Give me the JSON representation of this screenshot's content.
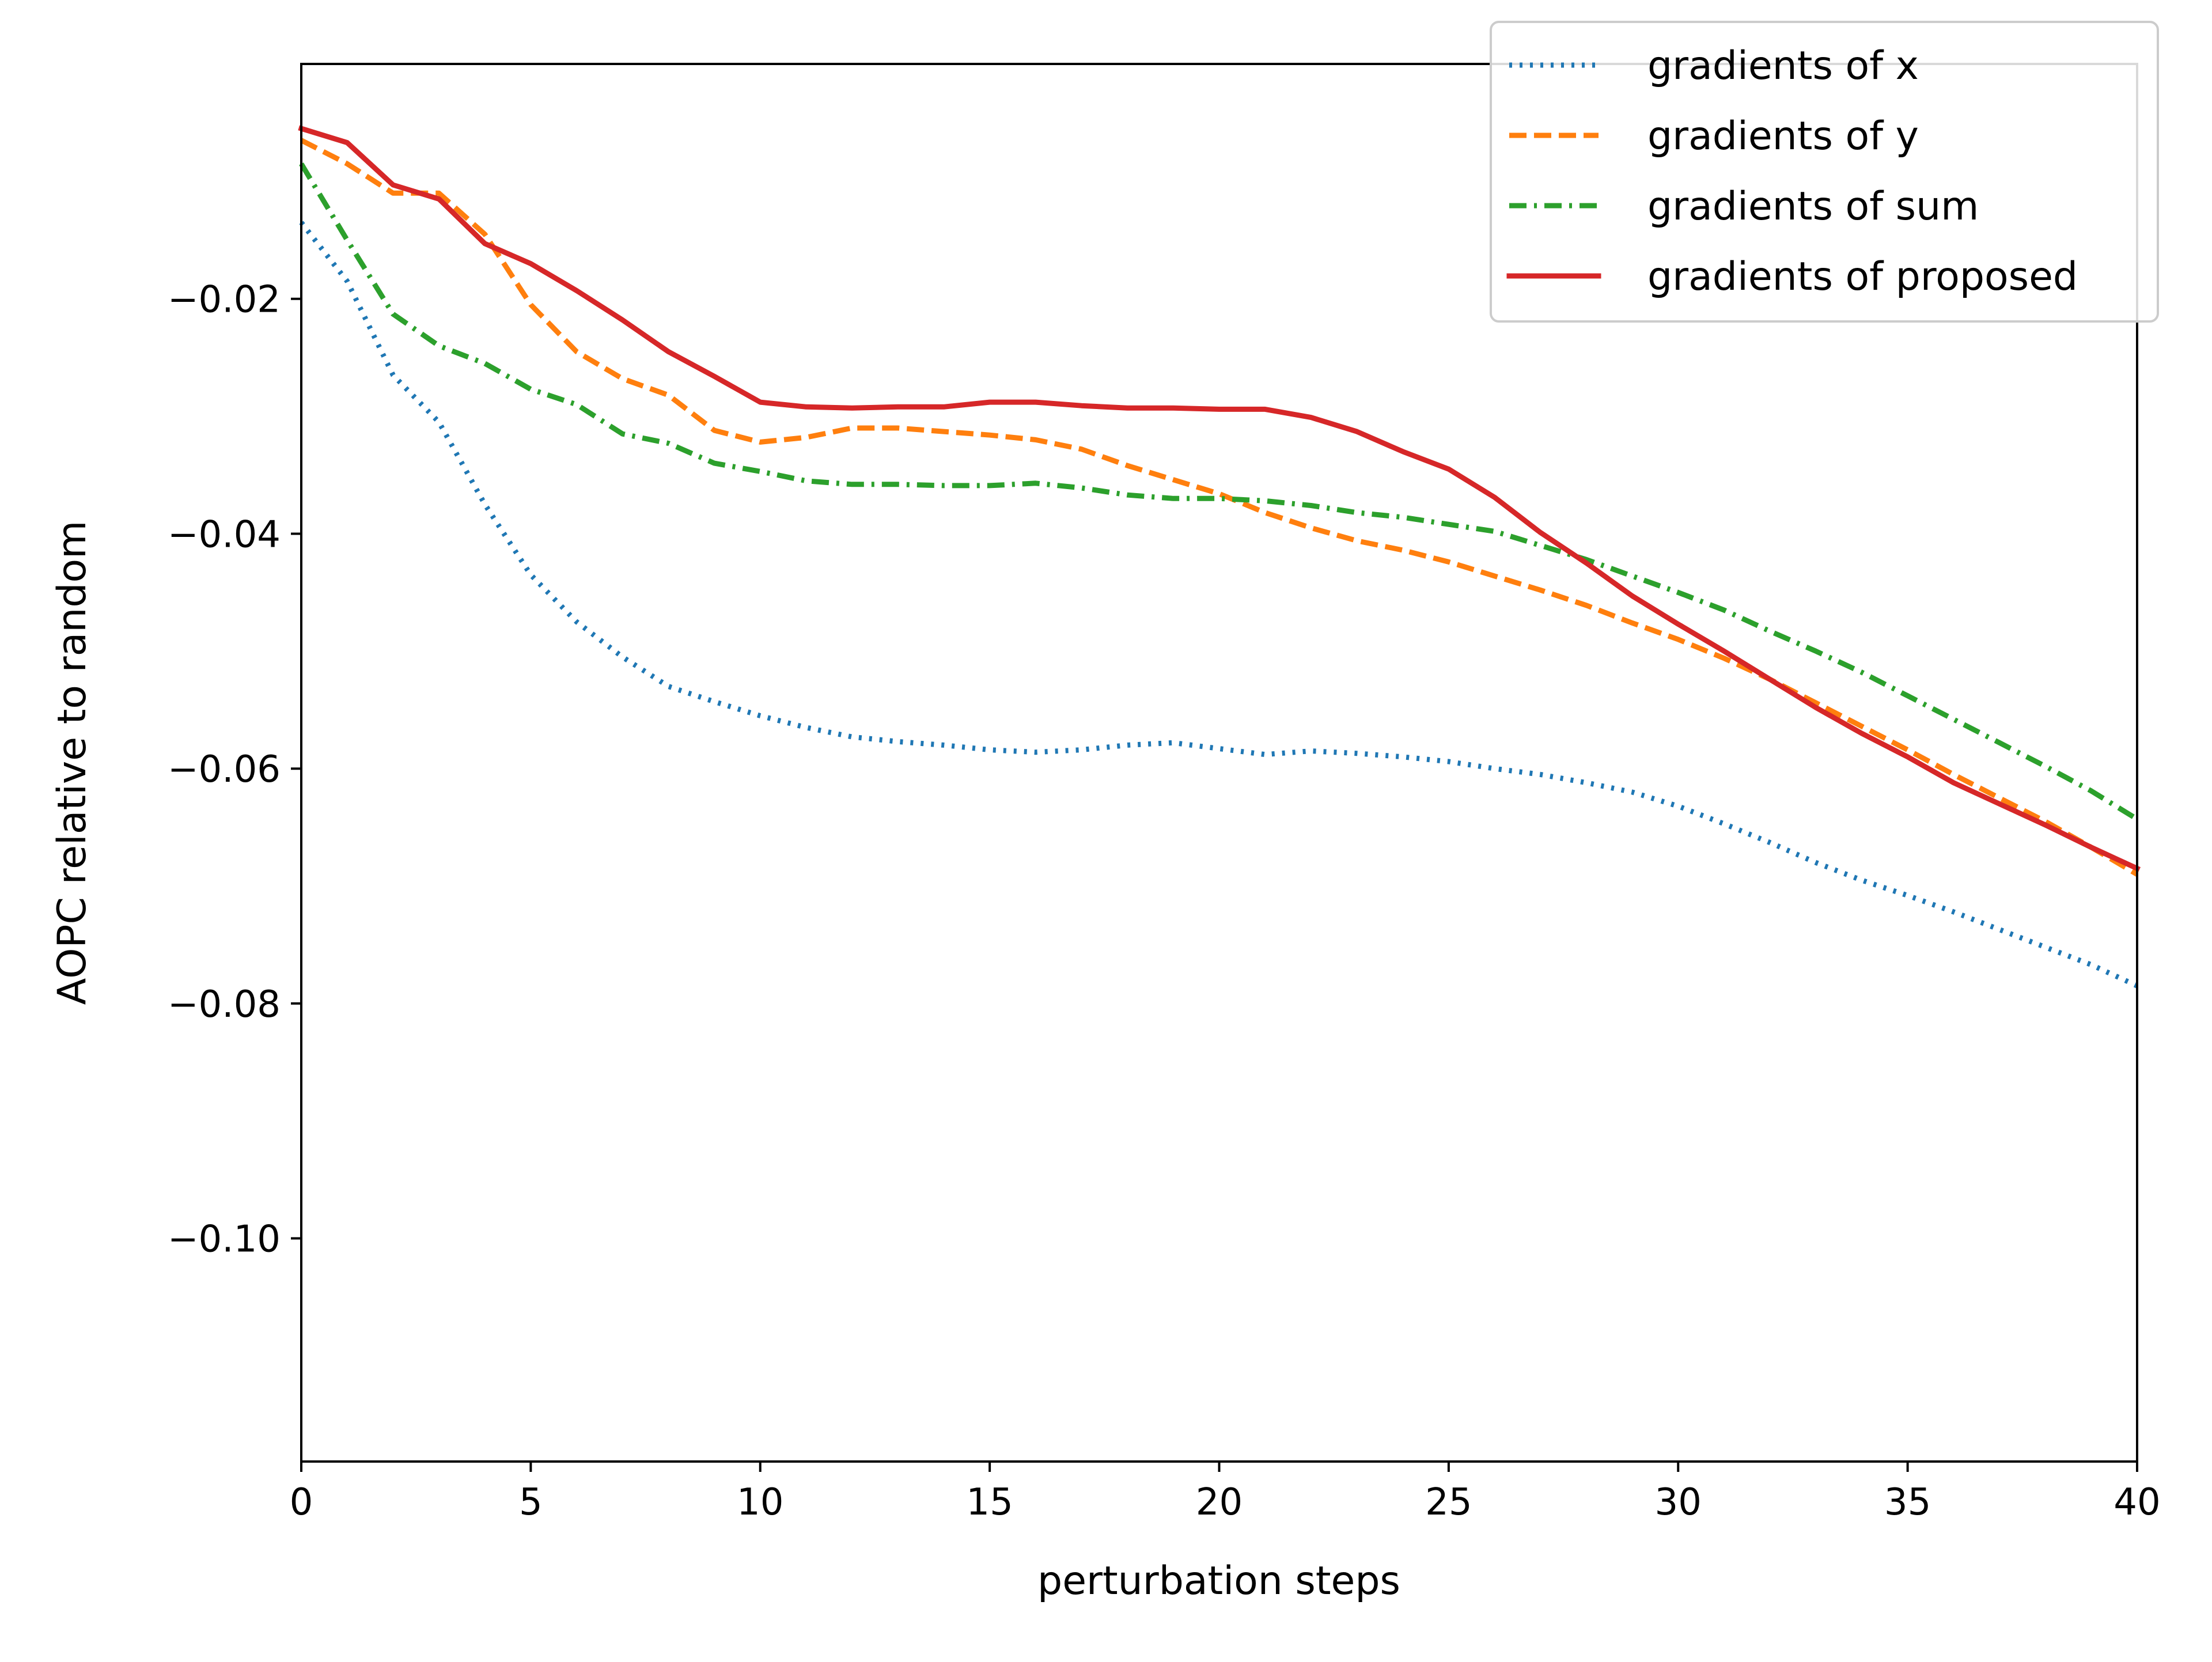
{
  "chart_data": {
    "type": "line",
    "title": "",
    "xlabel": "perturbation steps",
    "ylabel": "AOPC relative to random",
    "xlim": [
      0,
      40
    ],
    "ylim": [
      -0.119,
      -0.0
    ],
    "x_ticks": [
      0,
      5,
      10,
      15,
      20,
      25,
      30,
      35,
      40
    ],
    "x_tick_labels": [
      "0",
      "5",
      "10",
      "15",
      "20",
      "25",
      "30",
      "35",
      "40"
    ],
    "y_ticks": [
      -0.02,
      -0.04,
      -0.06,
      -0.08,
      -0.1
    ],
    "y_tick_labels": [
      "−0.02",
      "−0.04",
      "−0.06",
      "−0.08",
      "−0.10"
    ],
    "grid": false,
    "legend_position": "top-right",
    "x": [
      0,
      1,
      2,
      3,
      4,
      5,
      6,
      7,
      8,
      9,
      10,
      11,
      12,
      13,
      14,
      15,
      16,
      17,
      18,
      19,
      20,
      21,
      22,
      23,
      24,
      25,
      26,
      27,
      28,
      29,
      30,
      31,
      32,
      33,
      34,
      35,
      36,
      37,
      38,
      39,
      40
    ],
    "series": [
      {
        "name": "gradients of x",
        "color": "#1f77b4",
        "style": "dotted",
        "values": [
          -0.0135,
          -0.0185,
          -0.0265,
          -0.0305,
          -0.0375,
          -0.0435,
          -0.0475,
          -0.0505,
          -0.053,
          -0.0543,
          -0.0555,
          -0.0565,
          -0.0573,
          -0.0577,
          -0.058,
          -0.0584,
          -0.0586,
          -0.0584,
          -0.058,
          -0.0578,
          -0.0583,
          -0.0588,
          -0.0585,
          -0.0587,
          -0.059,
          -0.0594,
          -0.06,
          -0.0605,
          -0.0612,
          -0.062,
          -0.0632,
          -0.0647,
          -0.0663,
          -0.068,
          -0.0695,
          -0.0708,
          -0.0722,
          -0.0737,
          -0.0752,
          -0.0767,
          -0.0785
        ]
      },
      {
        "name": "gradients of y",
        "color": "#ff7f0e",
        "style": "dashed",
        "values": [
          -0.0065,
          -0.0085,
          -0.011,
          -0.011,
          -0.0145,
          -0.0205,
          -0.0245,
          -0.0268,
          -0.0282,
          -0.0312,
          -0.0322,
          -0.0318,
          -0.031,
          -0.031,
          -0.0313,
          -0.0316,
          -0.032,
          -0.0328,
          -0.0342,
          -0.0354,
          -0.0366,
          -0.0382,
          -0.0395,
          -0.0406,
          -0.0414,
          -0.0424,
          -0.0436,
          -0.0448,
          -0.0461,
          -0.0476,
          -0.049,
          -0.0506,
          -0.0524,
          -0.0544,
          -0.0564,
          -0.0584,
          -0.0605,
          -0.0625,
          -0.0645,
          -0.0667,
          -0.069
        ]
      },
      {
        "name": "gradients of sum",
        "color": "#2ca02c",
        "style": "dashdot",
        "values": [
          -0.0085,
          -0.015,
          -0.0213,
          -0.024,
          -0.0255,
          -0.0277,
          -0.029,
          -0.0315,
          -0.0323,
          -0.034,
          -0.0347,
          -0.0355,
          -0.0358,
          -0.0358,
          -0.0359,
          -0.0359,
          -0.0357,
          -0.0361,
          -0.0367,
          -0.037,
          -0.037,
          -0.0372,
          -0.0376,
          -0.0382,
          -0.0386,
          -0.0392,
          -0.0398,
          -0.041,
          -0.0422,
          -0.0436,
          -0.045,
          -0.0465,
          -0.0483,
          -0.05,
          -0.0518,
          -0.0538,
          -0.0558,
          -0.0578,
          -0.0598,
          -0.0619,
          -0.0643
        ]
      },
      {
        "name": "gradients of proposed",
        "color": "#d62728",
        "style": "solid",
        "values": [
          -0.0055,
          -0.0067,
          -0.0103,
          -0.0115,
          -0.0153,
          -0.017,
          -0.0193,
          -0.0218,
          -0.0245,
          -0.0266,
          -0.0288,
          -0.0292,
          -0.0293,
          -0.0292,
          -0.0292,
          -0.0288,
          -0.0288,
          -0.0291,
          -0.0293,
          -0.0293,
          -0.0294,
          -0.0294,
          -0.0301,
          -0.0313,
          -0.033,
          -0.0345,
          -0.0369,
          -0.0399,
          -0.0425,
          -0.0453,
          -0.0477,
          -0.05,
          -0.0524,
          -0.0548,
          -0.057,
          -0.059,
          -0.0612,
          -0.063,
          -0.0648,
          -0.0667,
          -0.0685
        ]
      }
    ]
  }
}
